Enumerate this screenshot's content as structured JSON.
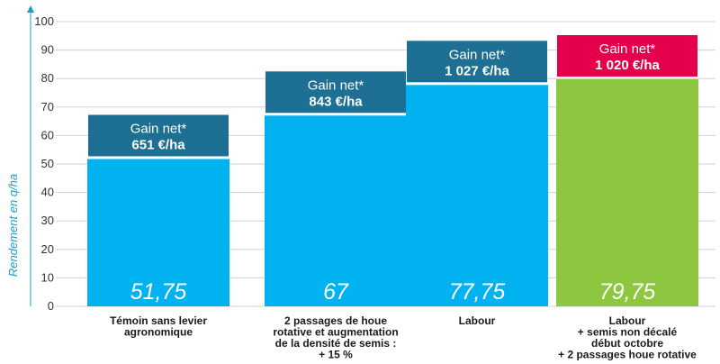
{
  "chart_data": {
    "type": "bar",
    "ylabel": "Rendement en q/ha",
    "ylim": [
      0,
      100
    ],
    "yticks": [
      0,
      10,
      20,
      30,
      40,
      50,
      60,
      70,
      80,
      90,
      100
    ],
    "grid": true,
    "bars": [
      {
        "category_lines": [
          "Témoin sans levier",
          "agronomique"
        ],
        "value": 51.75,
        "value_label": "51,75",
        "gain_label": "Gain net*",
        "gain_value": "651 €/ha",
        "bar_color": "#00b2ef",
        "box_color": "#1d6f94"
      },
      {
        "category_lines": [
          "2 passages de houe",
          "rotative et augmentation",
          "de la densité de semis :",
          "+ 15 %"
        ],
        "value": 67,
        "value_label": "67",
        "gain_label": "Gain net*",
        "gain_value": "843 €/ha",
        "bar_color": "#00b2ef",
        "box_color": "#1d6f94"
      },
      {
        "category_lines": [
          "Labour"
        ],
        "value": 77.75,
        "value_label": "77,75",
        "gain_label": "Gain net*",
        "gain_value": "1 027 €/ha",
        "bar_color": "#00b2ef",
        "box_color": "#1d6f94"
      },
      {
        "category_lines": [
          "Labour",
          "+ semis non décalé",
          "début octobre",
          "+ 2 passages houe rotative"
        ],
        "value": 79.75,
        "value_label": "79,75",
        "gain_label": "Gain net*",
        "gain_value": "1 020 €/ha",
        "bar_color": "#8dc63f",
        "box_color": "#e6004c"
      }
    ]
  }
}
